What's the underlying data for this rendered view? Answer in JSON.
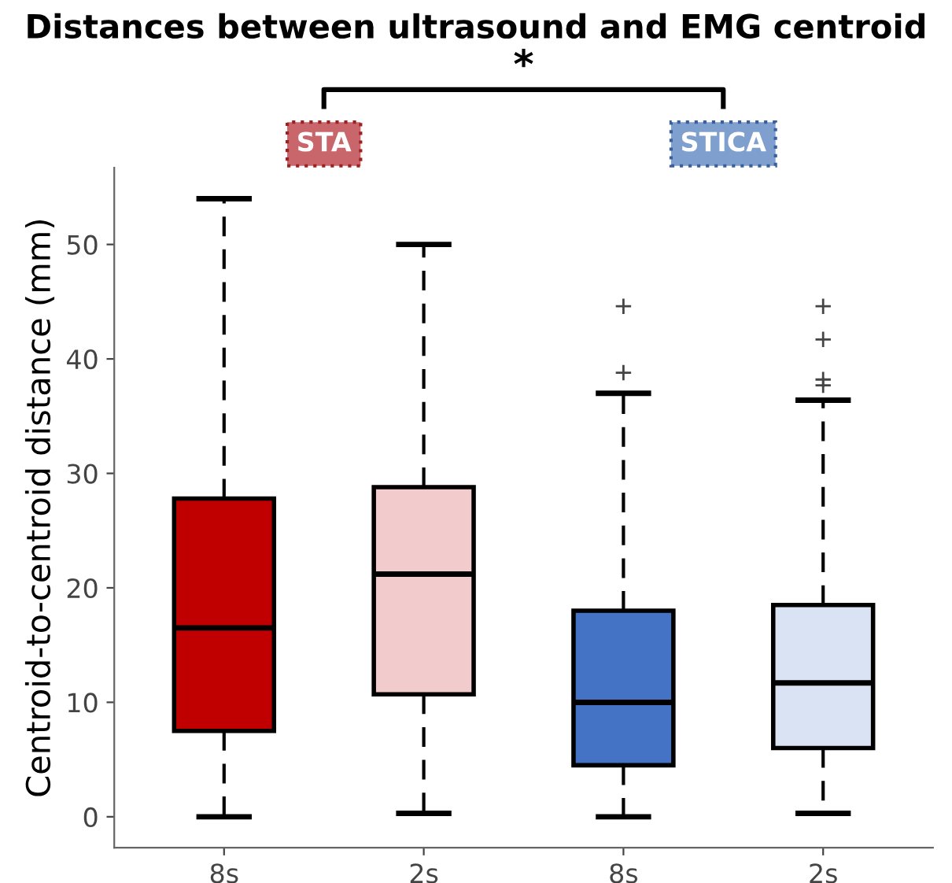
{
  "chart_data": {
    "type": "box",
    "title": "Distances between ultrasound and EMG centroid",
    "ylabel": "Centroid-to-centroid distance (mm)",
    "categories": [
      "8s",
      "2s",
      "8s",
      "2s"
    ],
    "colors": [
      "#c00000",
      "#f2cccc",
      "#4472c4",
      "#dae3f3"
    ],
    "boxes": [
      {
        "low": 0,
        "q1": 7.5,
        "median": 16.5,
        "q3": 27.8,
        "high": 54
      },
      {
        "low": 0.3,
        "q1": 10.7,
        "median": 21.2,
        "q3": 28.8,
        "high": 50
      },
      {
        "low": 0,
        "q1": 4.5,
        "median": 10,
        "q3": 18,
        "high": 37,
        "outliers": [
          38.8,
          44.6
        ]
      },
      {
        "low": 0.3,
        "q1": 6,
        "median": 11.7,
        "q3": 18.5,
        "high": 36.4,
        "outliers": [
          37.7,
          38.2,
          41.7,
          44.6
        ]
      }
    ],
    "ylim": [
      -2.7,
      56.7
    ],
    "yticks": [
      0,
      10,
      20,
      30,
      40,
      50
    ],
    "grid": false,
    "annotations": [
      "STA",
      "STICA",
      "*"
    ]
  }
}
